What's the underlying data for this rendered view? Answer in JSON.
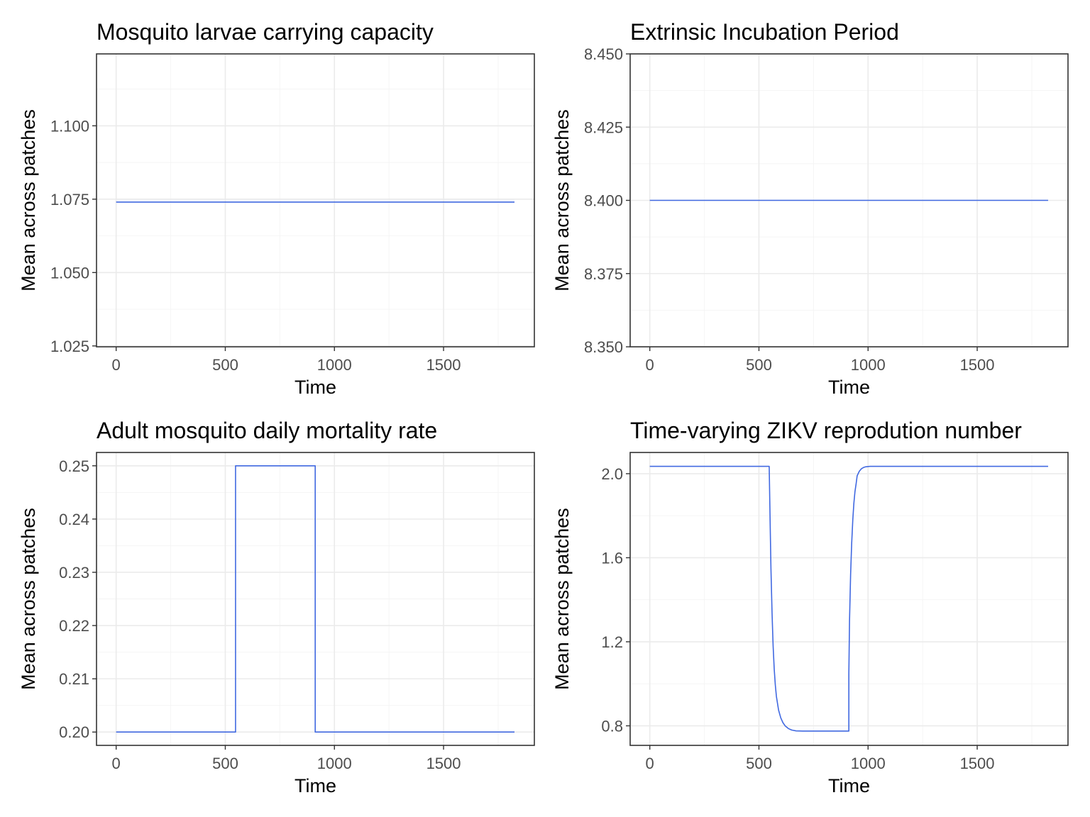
{
  "colors": {
    "series": "#4169E1",
    "background": "#ffffff"
  },
  "chart_data": [
    {
      "type": "line",
      "title": "Mosquito larvae carrying capacity",
      "xlabel": "Time",
      "ylabel": "Mean across patches",
      "xlim": [
        -90,
        1916
      ],
      "ylim": [
        1.0247,
        1.1245
      ],
      "xticks": [
        0,
        500,
        1000,
        1500
      ],
      "xtick_labels": [
        "0",
        "500",
        "1000",
        "1500"
      ],
      "yticks": [
        1.025,
        1.05,
        1.075,
        1.1
      ],
      "ytick_labels": [
        "1.025",
        "1.050",
        "1.075",
        "1.100"
      ],
      "grid": true,
      "x": [
        0,
        1825
      ],
      "y": [
        1.074,
        1.074
      ]
    },
    {
      "type": "line",
      "title": "Extrinsic Incubation Period",
      "xlabel": "Time",
      "ylabel": "Mean across patches",
      "xlim": [
        -90,
        1916
      ],
      "ylim": [
        8.35,
        8.45
      ],
      "xticks": [
        0,
        500,
        1000,
        1500
      ],
      "xtick_labels": [
        "0",
        "500",
        "1000",
        "1500"
      ],
      "yticks": [
        8.35,
        8.375,
        8.4,
        8.425,
        8.45
      ],
      "ytick_labels": [
        "8.350",
        "8.375",
        "8.400",
        "8.425",
        "8.450"
      ],
      "grid": true,
      "x": [
        0,
        1825
      ],
      "y": [
        8.4,
        8.4
      ]
    },
    {
      "type": "line",
      "title": "Adult mosquito daily mortality rate",
      "xlabel": "Time",
      "ylabel": "Mean across patches",
      "xlim": [
        -90,
        1916
      ],
      "ylim": [
        0.1975,
        0.2525
      ],
      "xticks": [
        0,
        500,
        1000,
        1500
      ],
      "xtick_labels": [
        "0",
        "500",
        "1000",
        "1500"
      ],
      "yticks": [
        0.2,
        0.21,
        0.22,
        0.23,
        0.24,
        0.25
      ],
      "ytick_labels": [
        "0.20",
        "0.21",
        "0.22",
        "0.23",
        "0.24",
        "0.25"
      ],
      "grid": true,
      "x": [
        0,
        547,
        547,
        912,
        912,
        1825
      ],
      "y": [
        0.2,
        0.2,
        0.25,
        0.25,
        0.2,
        0.2
      ]
    },
    {
      "type": "line",
      "title": "Time-varying ZIKV reprodution number",
      "xlabel": "Time",
      "ylabel": "Mean across patches",
      "xlim": [
        -90,
        1916
      ],
      "ylim": [
        0.707,
        2.101
      ],
      "xticks": [
        0,
        500,
        1000,
        1500
      ],
      "xtick_labels": [
        "0",
        "500",
        "1000",
        "1500"
      ],
      "yticks": [
        0.8,
        1.2,
        1.6,
        2.0
      ],
      "ytick_labels": [
        "0.8",
        "1.2",
        "1.6",
        "2.0"
      ],
      "grid": true,
      "x": [
        0,
        547,
        550,
        555,
        560,
        565,
        570,
        575,
        580,
        590,
        600,
        610,
        620,
        635,
        650,
        670,
        700,
        912,
        912,
        915,
        920,
        925,
        930,
        935,
        940,
        945,
        950,
        960,
        970,
        980,
        990,
        1000,
        1010,
        1025,
        1050,
        1100,
        1825
      ],
      "y": [
        2.035,
        2.035,
        1.85,
        1.55,
        1.34,
        1.18,
        1.07,
        0.995,
        0.94,
        0.875,
        0.838,
        0.815,
        0.8,
        0.787,
        0.78,
        0.776,
        0.775,
        0.775,
        1.05,
        1.3,
        1.52,
        1.67,
        1.78,
        1.86,
        1.915,
        1.95,
        1.99,
        2.012,
        2.024,
        2.03,
        2.033,
        2.034,
        2.035,
        2.035,
        2.035,
        2.035,
        2.035
      ]
    }
  ]
}
